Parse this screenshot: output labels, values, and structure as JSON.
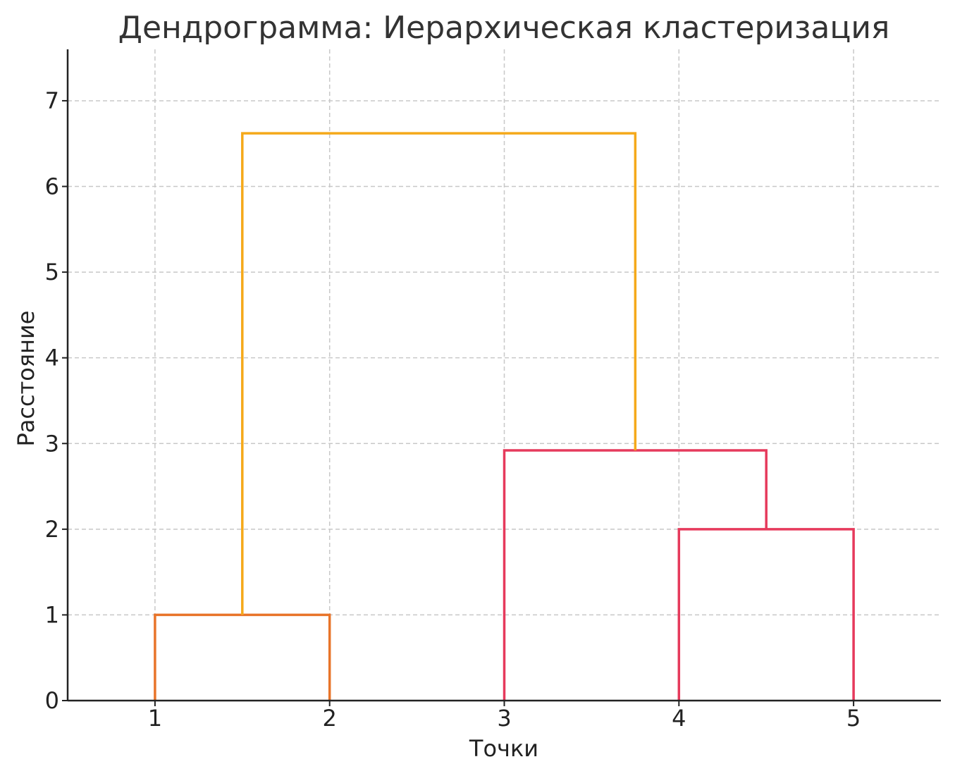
{
  "chart_data": {
    "type": "dendrogram",
    "title": "Дендрограмма: Иерархическая кластеризация",
    "xlabel": "Точки",
    "ylabel": "Расстояние",
    "leaves": [
      "1",
      "2",
      "3",
      "4",
      "5"
    ],
    "xlim": [
      0.5,
      5.5
    ],
    "ylim": [
      0,
      7.6
    ],
    "yticks": [
      0,
      1,
      2,
      3,
      4,
      5,
      6,
      7
    ],
    "grid": true,
    "links": [
      {
        "left": 1,
        "right": 2,
        "height": 1.0,
        "left_bottom": 0,
        "right_bottom": 0,
        "color": "#e8742a"
      },
      {
        "left": 4,
        "right": 5,
        "height": 2.0,
        "left_bottom": 0,
        "right_bottom": 0,
        "color": "#e63a5c"
      },
      {
        "left": 3,
        "right": 4.5,
        "height": 2.92,
        "left_bottom": 0,
        "right_bottom": 2.0,
        "color": "#e63a5c"
      },
      {
        "left": 1.5,
        "right": 3.75,
        "height": 6.62,
        "left_bottom": 1.0,
        "right_bottom": 2.92,
        "color": "#f5a91a"
      }
    ]
  }
}
